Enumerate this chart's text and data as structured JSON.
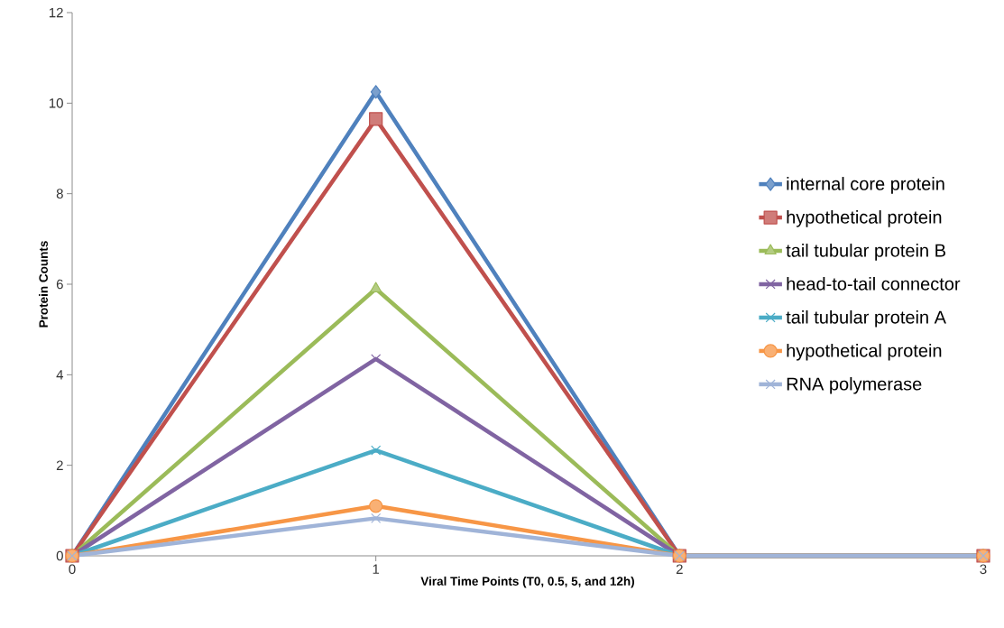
{
  "chart_data": {
    "type": "line",
    "xlabel": "Viral Time Points (T0, 0.5, 5, and 12h)",
    "ylabel": "Protein Counts",
    "x": [
      0,
      1,
      2,
      3
    ],
    "xlim": [
      0,
      3
    ],
    "xticks": [
      0,
      1,
      2,
      3
    ],
    "ylim": [
      0,
      12
    ],
    "yticks": [
      0,
      2,
      4,
      6,
      8,
      10,
      12
    ],
    "grid": false,
    "legend": "right",
    "line_style": "solid",
    "series": [
      {
        "name": "internal core protein",
        "color": "#4f81bd",
        "marker": "diamond",
        "values": [
          0,
          10.25,
          0,
          0
        ]
      },
      {
        "name": "hypothetical protein",
        "color": "#c0504d",
        "marker": "square",
        "values": [
          0,
          9.65,
          0,
          0
        ]
      },
      {
        "name": "tail tubular protein B",
        "color": "#9bbb59",
        "marker": "triangle",
        "values": [
          0,
          5.9,
          0,
          0
        ]
      },
      {
        "name": "head-to-tail connector",
        "color": "#8064a2",
        "marker": "cross",
        "values": [
          0,
          4.35,
          0,
          0
        ]
      },
      {
        "name": "tail tubular protein A",
        "color": "#4bacc6",
        "marker": "cross",
        "values": [
          0,
          2.33,
          0,
          0
        ]
      },
      {
        "name": "hypothetical protein",
        "color": "#f79646",
        "marker": "circle",
        "values": [
          0,
          1.1,
          0,
          0
        ]
      },
      {
        "name": "RNA polymerase",
        "color": "#a0b4d8",
        "marker": "cross",
        "values": [
          0,
          0.83,
          0,
          0
        ]
      }
    ]
  }
}
